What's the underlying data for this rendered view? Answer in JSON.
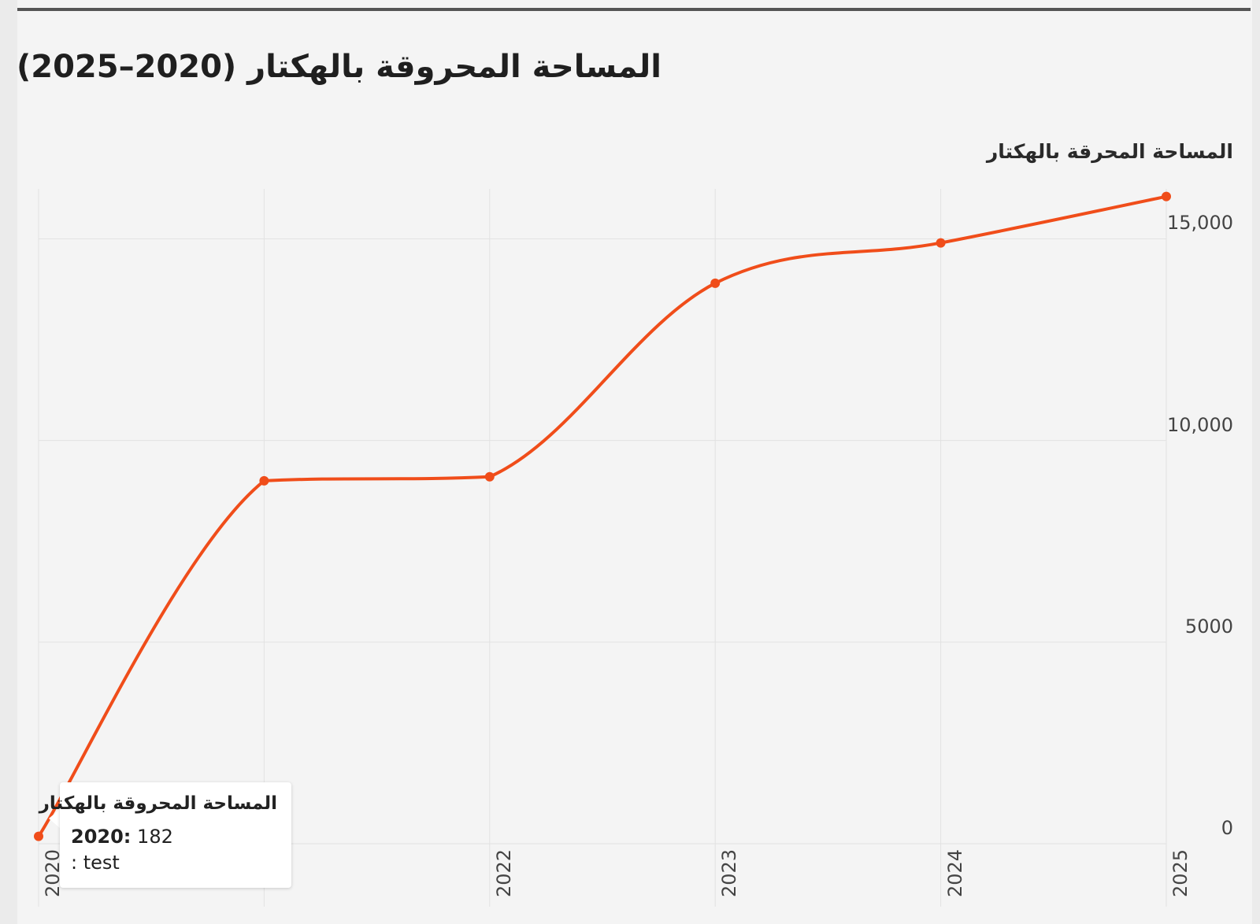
{
  "colors": {
    "line": "#f04d1a",
    "grid": "#e2e2e2",
    "background": "#f4f4f4"
  },
  "chart_data": {
    "type": "line",
    "title": "المساحة المحروقة بالهكتار (2020–2025)",
    "ylabel": "المساحة المحرقة بالهكتار",
    "xlabel": "",
    "x": [
      "2020",
      "2021",
      "2022",
      "2023",
      "2024",
      "2025"
    ],
    "x_tick_labels": [
      "2020",
      "",
      "2022",
      "2023",
      "2024",
      "2025"
    ],
    "series": [
      {
        "name": "المساحة المحروقة بالهكتار",
        "values": [
          182,
          9000,
          9100,
          13900,
          14900,
          16050
        ]
      }
    ],
    "ylim": [
      0,
      17000
    ],
    "y_ticks": [
      0,
      5000,
      10000,
      15000
    ],
    "y_tick_labels": [
      "0",
      "5000",
      "10,000",
      "15,000"
    ],
    "y_axis_position": "right",
    "grid": true,
    "curve": "smooth"
  },
  "tooltip": {
    "series_name": "المساحة المحروقة بالهكتار",
    "x_value": "2020:",
    "y_value": "182",
    "extra": ": test"
  }
}
